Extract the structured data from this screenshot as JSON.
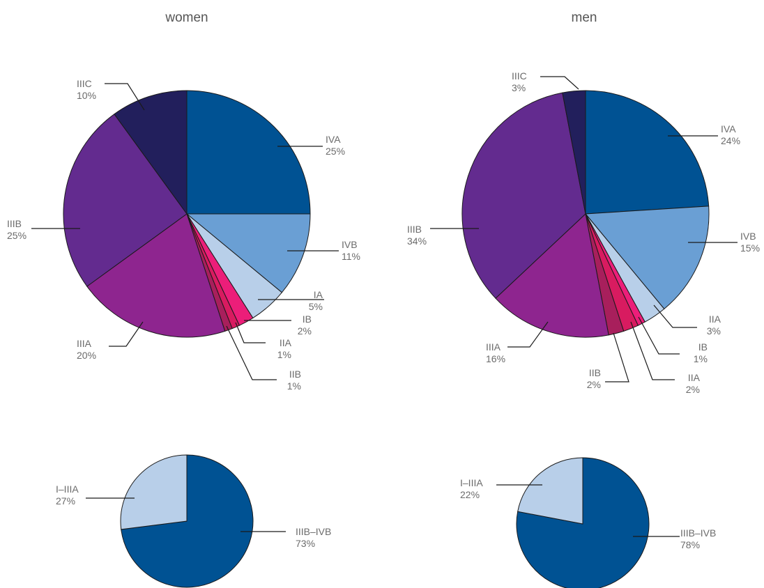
{
  "chart_data": [
    {
      "type": "pie",
      "title": "women",
      "categories": [
        "IVA",
        "IVB",
        "IA",
        "IB",
        "IIA",
        "IIB",
        "IIIA",
        "IIIB",
        "IIIC"
      ],
      "values": [
        25,
        11,
        5,
        2,
        1,
        1,
        20,
        25,
        10
      ],
      "labels": [
        "25%",
        "11%",
        "5%",
        "2%",
        "1%",
        "1%",
        "20%",
        "25%",
        "10%"
      ],
      "colors": [
        "#005293",
        "#6a9fd4",
        "#b8cfe9",
        "#ec1e79",
        "#d81b60",
        "#a81f5c",
        "#8e258f",
        "#632b8f",
        "#221f5c"
      ],
      "start": "12 o'clock",
      "direction": "clockwise"
    },
    {
      "type": "pie",
      "title": "men",
      "categories": [
        "IVA",
        "IVB",
        "IIA",
        "IB",
        "IIA",
        "IIB",
        "IIIA",
        "IIIB",
        "IIIC"
      ],
      "values": [
        24,
        15,
        3,
        1,
        2,
        2,
        16,
        34,
        3
      ],
      "labels": [
        "24%",
        "15%",
        "3%",
        "1%",
        "2%",
        "2%",
        "16%",
        "34%",
        "3%"
      ],
      "colors": [
        "#005293",
        "#6a9fd4",
        "#b8cfe9",
        "#ec1e79",
        "#d81b60",
        "#a81f5c",
        "#8e258f",
        "#632b8f",
        "#221f5c"
      ],
      "start": "12 o'clock",
      "direction": "clockwise"
    },
    {
      "type": "pie",
      "title": "",
      "categories": [
        "IIIB–IVB",
        "I–IIIA"
      ],
      "values": [
        73,
        27
      ],
      "labels": [
        "73%",
        "27%"
      ],
      "colors": [
        "#005293",
        "#b8cfe9"
      ],
      "start": "12 o'clock",
      "direction": "clockwise"
    },
    {
      "type": "pie",
      "title": "",
      "categories": [
        "IIIB–IVB",
        "I–IIIA"
      ],
      "values": [
        78,
        22
      ],
      "labels": [
        "78%",
        "22%"
      ],
      "colors": [
        "#005293",
        "#b8cfe9"
      ],
      "start": "12 o'clock",
      "direction": "clockwise"
    }
  ]
}
